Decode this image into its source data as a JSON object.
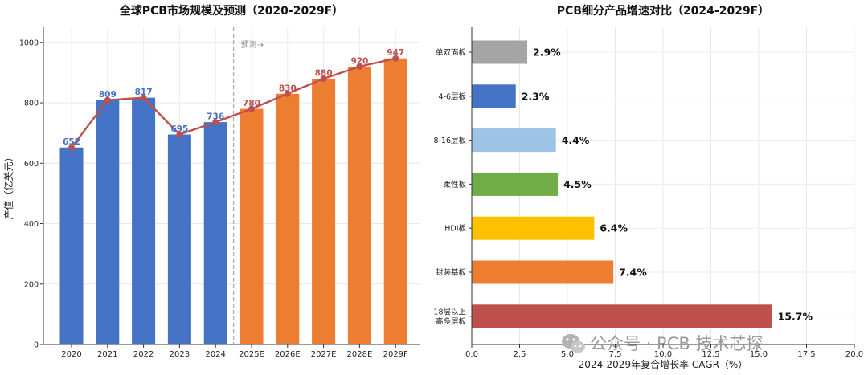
{
  "chart_data": [
    {
      "type": "bar",
      "title": "全球PCB市场规模及预测（2020-2029F）",
      "ylabel": "产值（亿美元）",
      "xlabel": "",
      "categories": [
        "2020",
        "2021",
        "2022",
        "2023",
        "2024",
        "2025E",
        "2026E",
        "2027E",
        "2028E",
        "2029F"
      ],
      "values": [
        652,
        809,
        817,
        695,
        736,
        780,
        830,
        880,
        920,
        947
      ],
      "bar_colors": [
        "#4472c4",
        "#4472c4",
        "#4472c4",
        "#4472c4",
        "#4472c4",
        "#ed7d31",
        "#ed7d31",
        "#ed7d31",
        "#ed7d31",
        "#ed7d31"
      ],
      "line_color": "#c0504d",
      "label_colors": {
        "actual": "#4472c4",
        "forecast": "#c0504d"
      },
      "forecast_start_index": 5,
      "forecast_annotation": "预测→",
      "ylim": [
        0,
        1050
      ],
      "yticks": [
        0,
        200,
        400,
        600,
        800,
        1000
      ],
      "grid": true
    },
    {
      "type": "bar",
      "orientation": "horizontal",
      "title": "PCB细分产品增速对比（2024-2029F）",
      "xlabel": "2024-2029年复合增长率 CAGR（%）",
      "ylabel": "",
      "categories": [
        "单双面板",
        "4-6层板",
        "8-16层板",
        "柔性板",
        "HDI板",
        "封装基板",
        "18层以上\n高多层板"
      ],
      "values": [
        2.9,
        2.3,
        4.4,
        4.5,
        6.4,
        7.4,
        15.7
      ],
      "value_labels": [
        "2.9%",
        "2.3%",
        "4.4%",
        "4.5%",
        "6.4%",
        "7.4%",
        "15.7%"
      ],
      "bar_colors": [
        "#a5a5a5",
        "#4472c4",
        "#9dc3e6",
        "#70ad47",
        "#ffc000",
        "#ed7d31",
        "#c0504d"
      ],
      "xlim": [
        0,
        20
      ],
      "xticks": [
        0,
        2.5,
        5,
        7.5,
        10,
        12.5,
        15,
        17.5,
        20
      ],
      "grid": true
    }
  ],
  "watermark": "公众号 · PCB 技术芯探"
}
